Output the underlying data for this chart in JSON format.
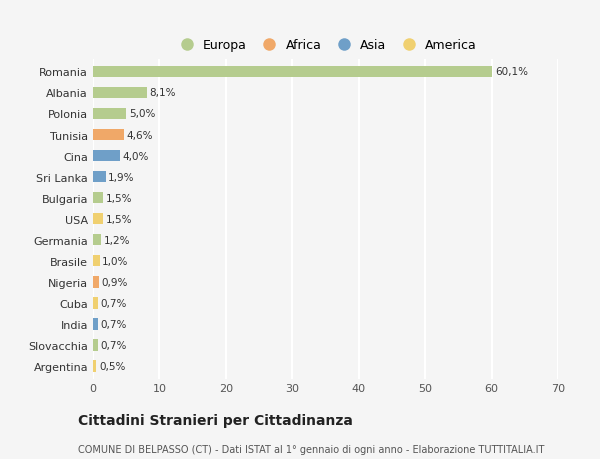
{
  "countries": [
    "Romania",
    "Albania",
    "Polonia",
    "Tunisia",
    "Cina",
    "Sri Lanka",
    "Bulgaria",
    "USA",
    "Germania",
    "Brasile",
    "Nigeria",
    "Cuba",
    "India",
    "Slovacchia",
    "Argentina"
  ],
  "values": [
    60.1,
    8.1,
    5.0,
    4.6,
    4.0,
    1.9,
    1.5,
    1.5,
    1.2,
    1.0,
    0.9,
    0.7,
    0.7,
    0.7,
    0.5
  ],
  "labels": [
    "60,1%",
    "8,1%",
    "5,0%",
    "4,6%",
    "4,0%",
    "1,9%",
    "1,5%",
    "1,5%",
    "1,2%",
    "1,0%",
    "0,9%",
    "0,7%",
    "0,7%",
    "0,7%",
    "0,5%"
  ],
  "continents": [
    "Europa",
    "Europa",
    "Europa",
    "Africa",
    "Asia",
    "Asia",
    "Europa",
    "America",
    "Europa",
    "America",
    "Africa",
    "America",
    "Asia",
    "Europa",
    "America"
  ],
  "continent_colors": {
    "Europa": "#b5cc8e",
    "Africa": "#f0a868",
    "Asia": "#6f9fc8",
    "America": "#f0d070"
  },
  "legend_labels": [
    "Europa",
    "Africa",
    "Asia",
    "America"
  ],
  "legend_colors": [
    "#b5cc8e",
    "#f0a868",
    "#6f9fc8",
    "#f0d070"
  ],
  "xlim": [
    0,
    70
  ],
  "xticks": [
    0,
    10,
    20,
    30,
    40,
    50,
    60,
    70
  ],
  "title": "Cittadini Stranieri per Cittadinanza",
  "subtitle": "COMUNE DI BELPASSO (CT) - Dati ISTAT al 1° gennaio di ogni anno - Elaborazione TUTTITALIA.IT",
  "bg_color": "#f5f5f5",
  "grid_color": "#ffffff",
  "bar_height": 0.55,
  "label_fontsize": 7.5,
  "ytick_fontsize": 8,
  "xtick_fontsize": 8,
  "title_fontsize": 10,
  "subtitle_fontsize": 7
}
